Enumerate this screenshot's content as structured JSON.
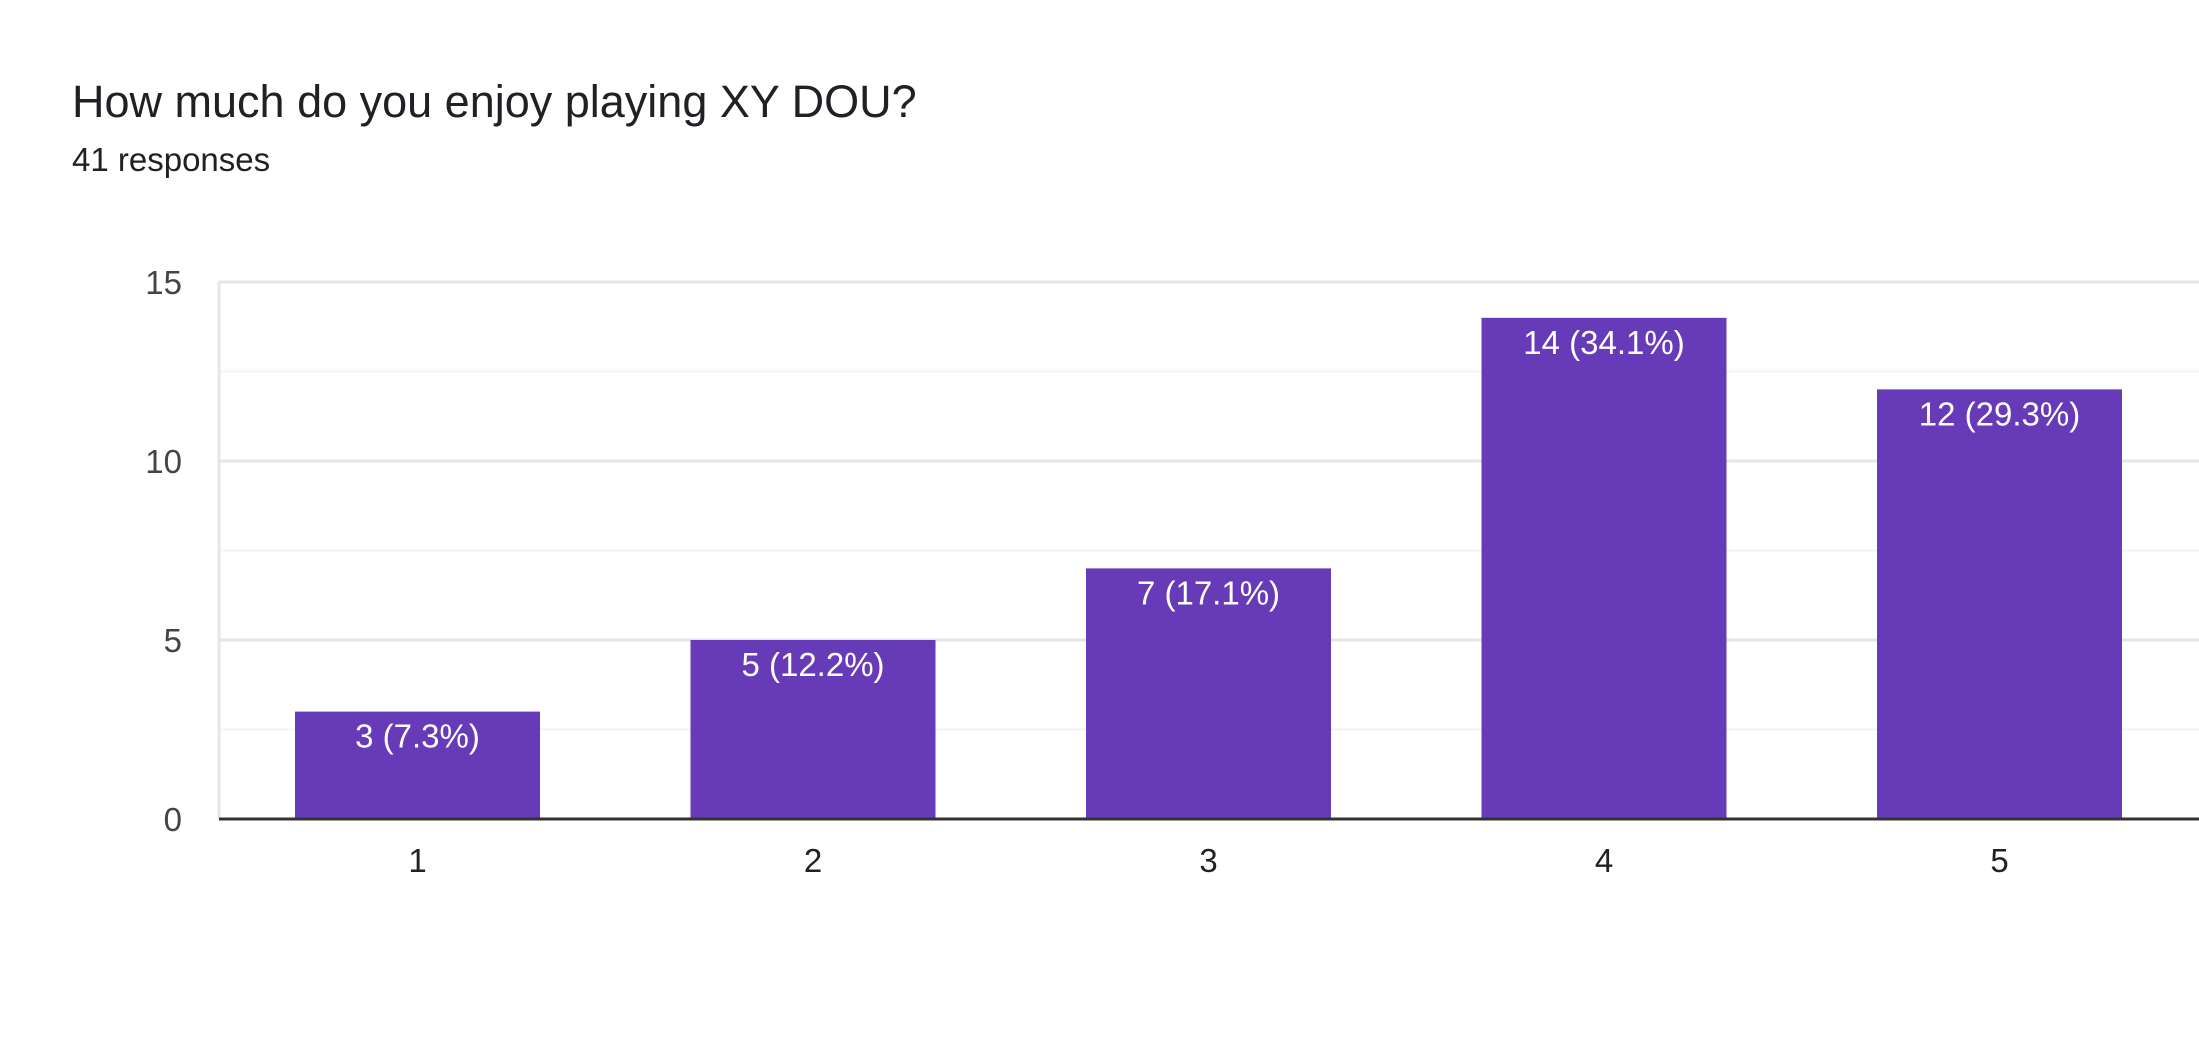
{
  "header": {
    "title": "How much do you enjoy playing XY DOU?",
    "responses": "41 responses"
  },
  "colors": {
    "bar": "#673ab7",
    "grid_major": "#e6e6e6",
    "grid_minor": "#f3f3f3",
    "axis": "#333333"
  },
  "chart_data": {
    "type": "bar",
    "title": "How much do you enjoy playing XY DOU?",
    "xlabel": "",
    "ylabel": "",
    "categories": [
      "1",
      "2",
      "3",
      "4",
      "5"
    ],
    "values": [
      3,
      5,
      7,
      14,
      12
    ],
    "data_labels": [
      "3 (7.3%)",
      "5 (12.2%)",
      "7 (17.1%)",
      "14 (34.1%)",
      "12 (29.3%)"
    ],
    "ylim": [
      0,
      15
    ],
    "yticks": [
      0,
      5,
      10,
      15
    ],
    "grid": true
  }
}
